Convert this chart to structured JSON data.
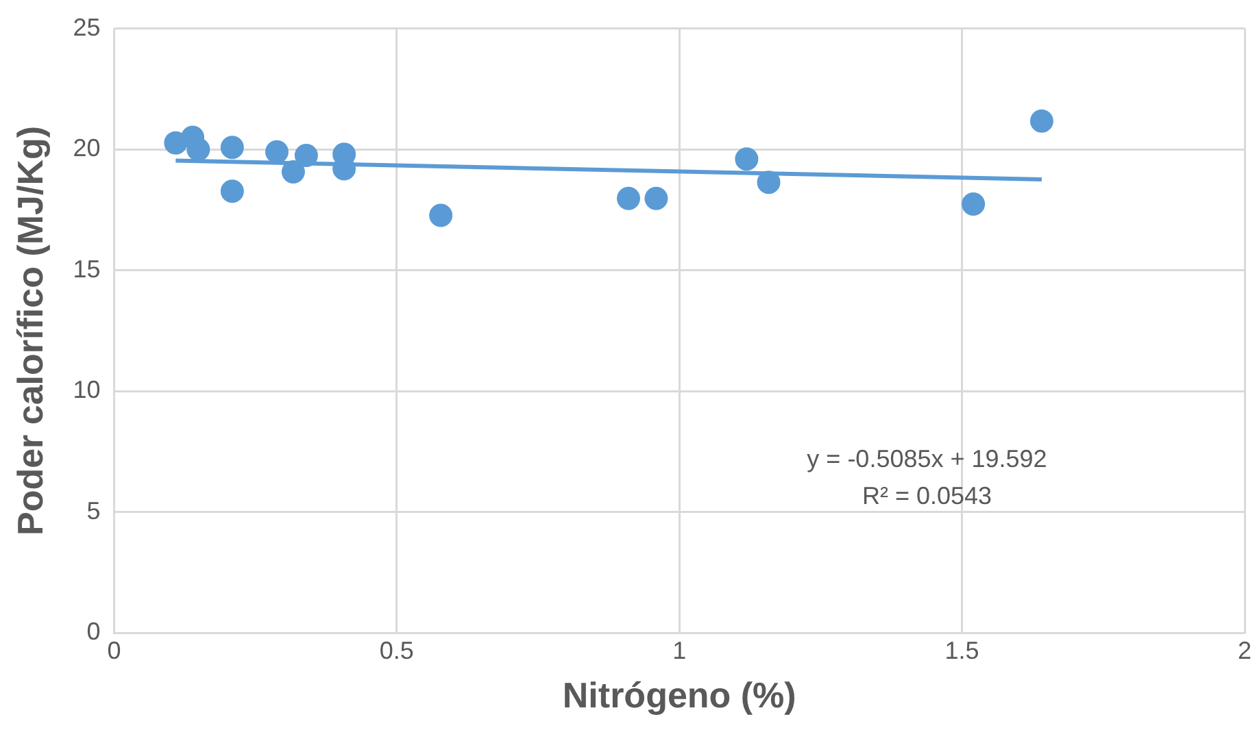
{
  "chart_data": {
    "type": "scatter",
    "xlabel": "Nitrógeno (%)",
    "ylabel": "Poder calorífico (MJ/Kg)",
    "xlim": [
      0,
      2
    ],
    "xticks": [
      0,
      0.5,
      1,
      1.5,
      2
    ],
    "ylim": [
      0,
      25
    ],
    "yticks": [
      0,
      5,
      10,
      15,
      20,
      25
    ],
    "grid": true,
    "legend": false,
    "series": [
      {
        "color": "#5b9bd5",
        "marker": "circle",
        "x": [
          0.109,
          0.139,
          0.149,
          0.209,
          0.209,
          0.288,
          0.317,
          0.34,
          0.407,
          0.407,
          0.578,
          0.91,
          0.959,
          1.119,
          1.158,
          1.52,
          1.641
        ],
        "values": [
          20.27,
          20.5,
          20.0,
          20.08,
          18.27,
          19.9,
          19.07,
          19.75,
          19.8,
          19.2,
          17.27,
          17.97,
          17.97,
          19.6,
          18.64,
          17.74,
          21.17
        ]
      },
      {
        "type": "line",
        "color": "#5b9bd5",
        "marker": "none",
        "x": [
          0.109,
          1.641
        ],
        "values": [
          19.54,
          18.76
        ]
      }
    ],
    "annotations": [
      "y = -0.5085x + 19.592",
      "R² = 0.0543"
    ]
  }
}
